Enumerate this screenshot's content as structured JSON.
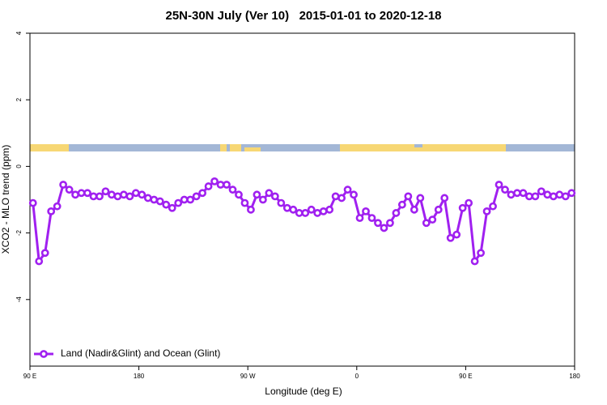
{
  "chart_data": {
    "type": "line",
    "title": "25N-30N July (Ver 10)   2015-01-01 to 2020-12-18",
    "x_label": "Longitude (deg E)",
    "y_label": "XCO2 - MLO trend (ppm)",
    "x": [
      92.5,
      97.5,
      102.5,
      107.5,
      112.5,
      117.5,
      122.5,
      127.5,
      132.5,
      137.5,
      142.5,
      147.5,
      152.5,
      157.5,
      162.5,
      167.5,
      172.5,
      177.5,
      182.5,
      187.5,
      192.5,
      197.5,
      202.5,
      207.5,
      212.5,
      217.5,
      222.5,
      227.5,
      232.5,
      237.5,
      242.5,
      247.5,
      252.5,
      257.5,
      262.5,
      267.5,
      272.5,
      277.5,
      282.5,
      287.5,
      292.5,
      297.5,
      302.5,
      307.5,
      312.5,
      317.5,
      322.5,
      327.5,
      332.5,
      337.5,
      342.5,
      347.5,
      352.5,
      357.5,
      362.5,
      367.5,
      372.5,
      377.5,
      382.5,
      387.5,
      392.5,
      397.5,
      402.5,
      407.5,
      412.5,
      417.5,
      422.5,
      427.5,
      432.5,
      437.5,
      442.5,
      447.5,
      452.5,
      457.5,
      462.5,
      467.5,
      472.5,
      477.5,
      482.5,
      487.5,
      492.5,
      497.5,
      502.5,
      507.5,
      512.5,
      517.5,
      522.5,
      527.5,
      532.5,
      537.5
    ],
    "series": [
      {
        "name": "Land (Nadir&Glint) and Ocean (Glint)",
        "color": "#a020f0",
        "values": [
          -1.1,
          -2.85,
          -2.6,
          -1.35,
          -1.2,
          -0.55,
          -0.7,
          -0.85,
          -0.8,
          -0.8,
          -0.9,
          -0.9,
          -0.75,
          -0.85,
          -0.9,
          -0.85,
          -0.9,
          -0.8,
          -0.85,
          -0.95,
          -1.0,
          -1.05,
          -1.15,
          -1.25,
          -1.1,
          -1.0,
          -1.0,
          -0.9,
          -0.8,
          -0.6,
          -0.45,
          -0.55,
          -0.55,
          -0.7,
          -0.85,
          -1.1,
          -1.3,
          -0.85,
          -1.0,
          -0.8,
          -0.9,
          -1.1,
          -1.25,
          -1.3,
          -1.4,
          -1.4,
          -1.3,
          -1.4,
          -1.35,
          -1.3,
          -0.9,
          -0.95,
          -0.7,
          -0.85,
          -1.55,
          -1.35,
          -1.55,
          -1.7,
          -1.85,
          -1.7,
          -1.4,
          -1.15,
          -0.9,
          -1.3,
          -0.95,
          -1.7,
          -1.6,
          -1.3,
          -0.95,
          -2.15,
          -2.05,
          -1.25,
          -1.1,
          -2.85,
          -2.6,
          -1.35,
          -1.2,
          -0.55,
          -0.7,
          -0.85,
          -0.8,
          -0.8,
          -0.9,
          -0.9,
          -0.75,
          -0.85,
          -0.9,
          -0.85,
          -0.9,
          -0.8
        ]
      }
    ],
    "xlim": [
      90,
      540
    ],
    "xticks": [
      {
        "value": 90,
        "label": "90 E"
      },
      {
        "value": 180,
        "label": "180"
      },
      {
        "value": 270,
        "label": "90 W"
      },
      {
        "value": 360,
        "label": "0"
      },
      {
        "value": 450,
        "label": "90 E"
      },
      {
        "value": 540,
        "label": "180"
      }
    ],
    "ylim": [
      -6,
      4
    ],
    "yticks": [
      -4,
      -2,
      0,
      2,
      4
    ],
    "legend": "bottomleft"
  }
}
